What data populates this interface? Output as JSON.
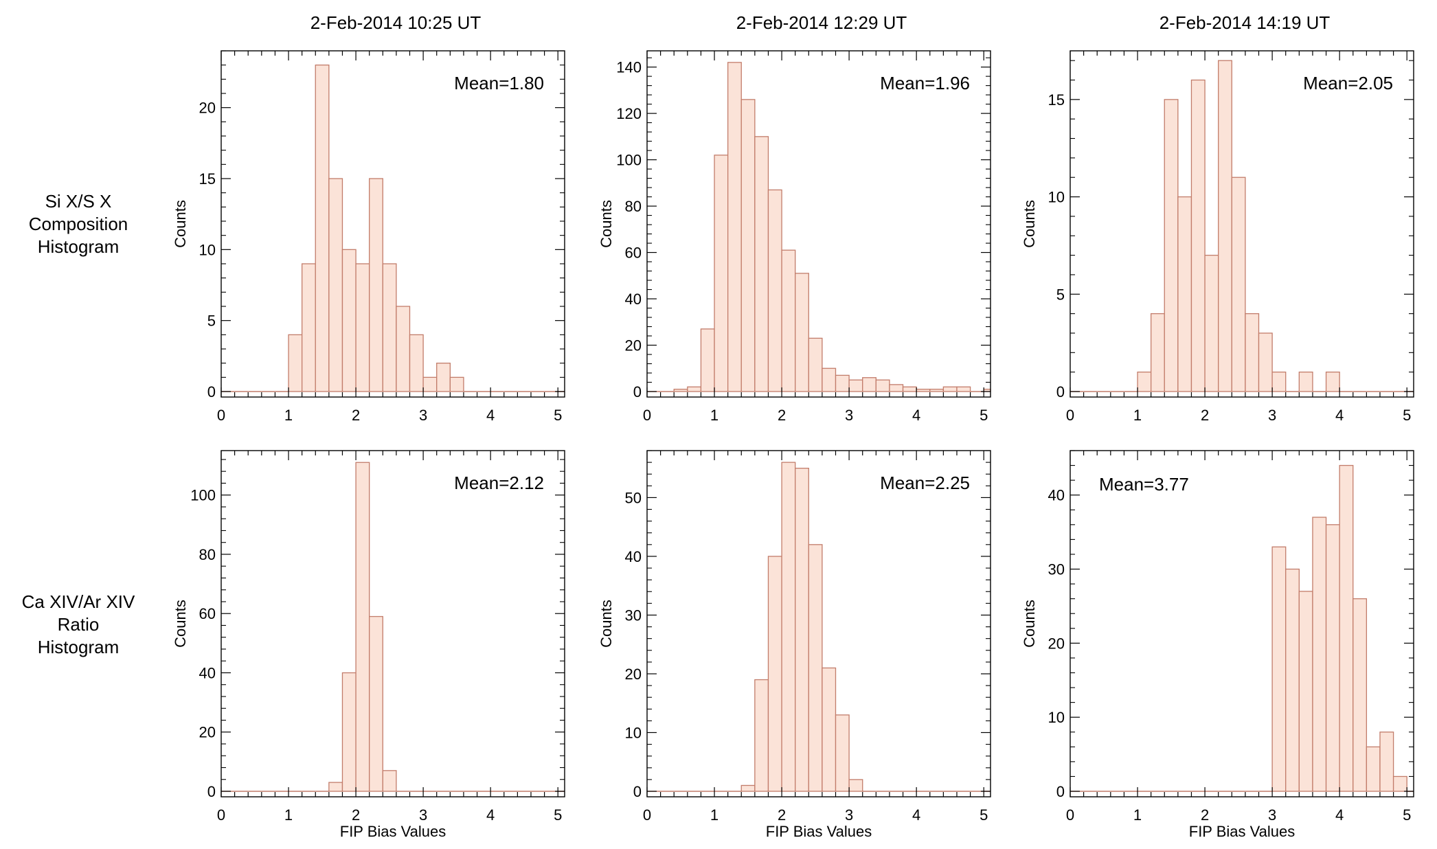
{
  "figure": {
    "row_labels": [
      [
        "Si X/S X",
        "Composition",
        "Histogram"
      ],
      [
        "Ca XIV/Ar XIV",
        "Ratio",
        "Histogram"
      ]
    ],
    "column_titles": [
      "2-Feb-2014 10:25 UT",
      "2-Feb-2014 12:29 UT",
      "2-Feb-2014 14:19 UT"
    ]
  },
  "colors": {
    "bar_fill": "#fbe3d8",
    "bar_stroke": "#c27c6a",
    "axis": "#000000"
  },
  "chart_data": [
    {
      "type": "bar",
      "panel": "top-left",
      "title": "2-Feb-2014 10:25 UT",
      "ylabel": "Counts",
      "xlabel": "",
      "annotation": "Mean=1.80",
      "annotation_position": "top-right",
      "xlim": [
        0,
        5.1
      ],
      "ylim": [
        0,
        24
      ],
      "xticks": [
        0,
        1,
        2,
        3,
        4,
        5
      ],
      "yticks": [
        0,
        5,
        10,
        15,
        20
      ],
      "bin_width": 0.2,
      "bin_starts": [
        0,
        0.2,
        0.4,
        0.6,
        0.8,
        1.0,
        1.2,
        1.4,
        1.6,
        1.8,
        2.0,
        2.2,
        2.4,
        2.6,
        2.8,
        3.0,
        3.2,
        3.4,
        3.6,
        3.8,
        4.0,
        4.2,
        4.4,
        4.6,
        4.8,
        5.0
      ],
      "values": [
        0,
        0,
        0,
        0,
        0,
        4,
        9,
        23,
        15,
        10,
        9,
        15,
        9,
        6,
        4,
        1,
        2,
        1,
        0,
        0,
        0,
        0,
        0,
        0,
        0,
        0
      ]
    },
    {
      "type": "bar",
      "panel": "top-center",
      "title": "2-Feb-2014 12:29 UT",
      "ylabel": "Counts",
      "xlabel": "",
      "annotation": "Mean=1.96",
      "annotation_position": "top-right",
      "xlim": [
        0,
        5.1
      ],
      "ylim": [
        0,
        147
      ],
      "xticks": [
        0,
        1,
        2,
        3,
        4,
        5
      ],
      "yticks": [
        0,
        20,
        40,
        60,
        80,
        100,
        120,
        140
      ],
      "bin_width": 0.2,
      "bin_starts": [
        0,
        0.2,
        0.4,
        0.6,
        0.8,
        1.0,
        1.2,
        1.4,
        1.6,
        1.8,
        2.0,
        2.2,
        2.4,
        2.6,
        2.8,
        3.0,
        3.2,
        3.4,
        3.6,
        3.8,
        4.0,
        4.2,
        4.4,
        4.6,
        4.8,
        5.0
      ],
      "values": [
        0,
        0,
        1,
        2,
        27,
        102,
        142,
        126,
        110,
        87,
        61,
        51,
        23,
        10,
        7,
        5,
        6,
        5,
        3,
        2,
        1,
        1,
        2,
        2,
        0,
        1
      ]
    },
    {
      "type": "bar",
      "panel": "top-right",
      "title": "2-Feb-2014 14:19 UT",
      "ylabel": "Counts",
      "xlabel": "",
      "annotation": "Mean=2.05",
      "annotation_position": "top-right",
      "xlim": [
        0,
        5.1
      ],
      "ylim": [
        0,
        17.5
      ],
      "xticks": [
        0,
        1,
        2,
        3,
        4,
        5
      ],
      "yticks": [
        0,
        5,
        10,
        15
      ],
      "bin_width": 0.2,
      "bin_starts": [
        0,
        0.2,
        0.4,
        0.6,
        0.8,
        1.0,
        1.2,
        1.4,
        1.6,
        1.8,
        2.0,
        2.2,
        2.4,
        2.6,
        2.8,
        3.0,
        3.2,
        3.4,
        3.6,
        3.8,
        4.0,
        4.2,
        4.4,
        4.6,
        4.8,
        5.0
      ],
      "values": [
        0,
        0,
        0,
        0,
        0,
        1,
        4,
        15,
        10,
        16,
        7,
        17,
        11,
        4,
        3,
        1,
        0,
        1,
        0,
        1,
        0,
        0,
        0,
        0,
        0,
        0
      ]
    },
    {
      "type": "bar",
      "panel": "bottom-left",
      "title": "",
      "ylabel": "Counts",
      "xlabel": "FIP Bias Values",
      "annotation": "Mean=2.12",
      "annotation_position": "top-right",
      "xlim": [
        0,
        5.1
      ],
      "ylim": [
        0,
        115
      ],
      "xticks": [
        0,
        1,
        2,
        3,
        4,
        5
      ],
      "yticks": [
        0,
        20,
        40,
        60,
        80,
        100
      ],
      "bin_width": 0.2,
      "bin_starts": [
        0,
        0.2,
        0.4,
        0.6,
        0.8,
        1.0,
        1.2,
        1.4,
        1.6,
        1.8,
        2.0,
        2.2,
        2.4,
        2.6,
        2.8,
        3.0,
        3.2,
        3.4,
        3.6,
        3.8,
        4.0,
        4.2,
        4.4,
        4.6,
        4.8,
        5.0
      ],
      "values": [
        0,
        0,
        0,
        0,
        0,
        0,
        0,
        0,
        3,
        40,
        111,
        59,
        7,
        0,
        0,
        0,
        0,
        0,
        0,
        0,
        0,
        0,
        0,
        0,
        0,
        0
      ]
    },
    {
      "type": "bar",
      "panel": "bottom-center",
      "title": "",
      "ylabel": "Counts",
      "xlabel": "FIP Bias Values",
      "annotation": "Mean=2.25",
      "annotation_position": "top-right",
      "xlim": [
        0,
        5.1
      ],
      "ylim": [
        0,
        58
      ],
      "xticks": [
        0,
        1,
        2,
        3,
        4,
        5
      ],
      "yticks": [
        0,
        10,
        20,
        30,
        40,
        50
      ],
      "bin_width": 0.2,
      "bin_starts": [
        0,
        0.2,
        0.4,
        0.6,
        0.8,
        1.0,
        1.2,
        1.4,
        1.6,
        1.8,
        2.0,
        2.2,
        2.4,
        2.6,
        2.8,
        3.0,
        3.2,
        3.4,
        3.6,
        3.8,
        4.0,
        4.2,
        4.4,
        4.6,
        4.8,
        5.0
      ],
      "values": [
        0,
        0,
        0,
        0,
        0,
        0,
        0,
        1,
        19,
        40,
        56,
        55,
        42,
        21,
        13,
        2,
        0,
        0,
        0,
        0,
        0,
        0,
        0,
        0,
        0,
        0
      ]
    },
    {
      "type": "bar",
      "panel": "bottom-right",
      "title": "",
      "ylabel": "Counts",
      "xlabel": "FIP Bias Values",
      "annotation": "Mean=3.77",
      "annotation_position": "top-left",
      "xlim": [
        0,
        5.1
      ],
      "ylim": [
        0,
        46
      ],
      "xticks": [
        0,
        1,
        2,
        3,
        4,
        5
      ],
      "yticks": [
        0,
        10,
        20,
        30,
        40
      ],
      "bin_width": 0.2,
      "bin_starts": [
        0,
        0.2,
        0.4,
        0.6,
        0.8,
        1.0,
        1.2,
        1.4,
        1.6,
        1.8,
        2.0,
        2.2,
        2.4,
        2.6,
        2.8,
        3.0,
        3.2,
        3.4,
        3.6,
        3.8,
        4.0,
        4.2,
        4.4,
        4.6,
        4.8,
        5.0
      ],
      "values": [
        0,
        0,
        0,
        0,
        0,
        0,
        0,
        0,
        0,
        0,
        0,
        0,
        0,
        0,
        0,
        33,
        30,
        27,
        37,
        36,
        44,
        26,
        6,
        8,
        2,
        0
      ]
    }
  ]
}
